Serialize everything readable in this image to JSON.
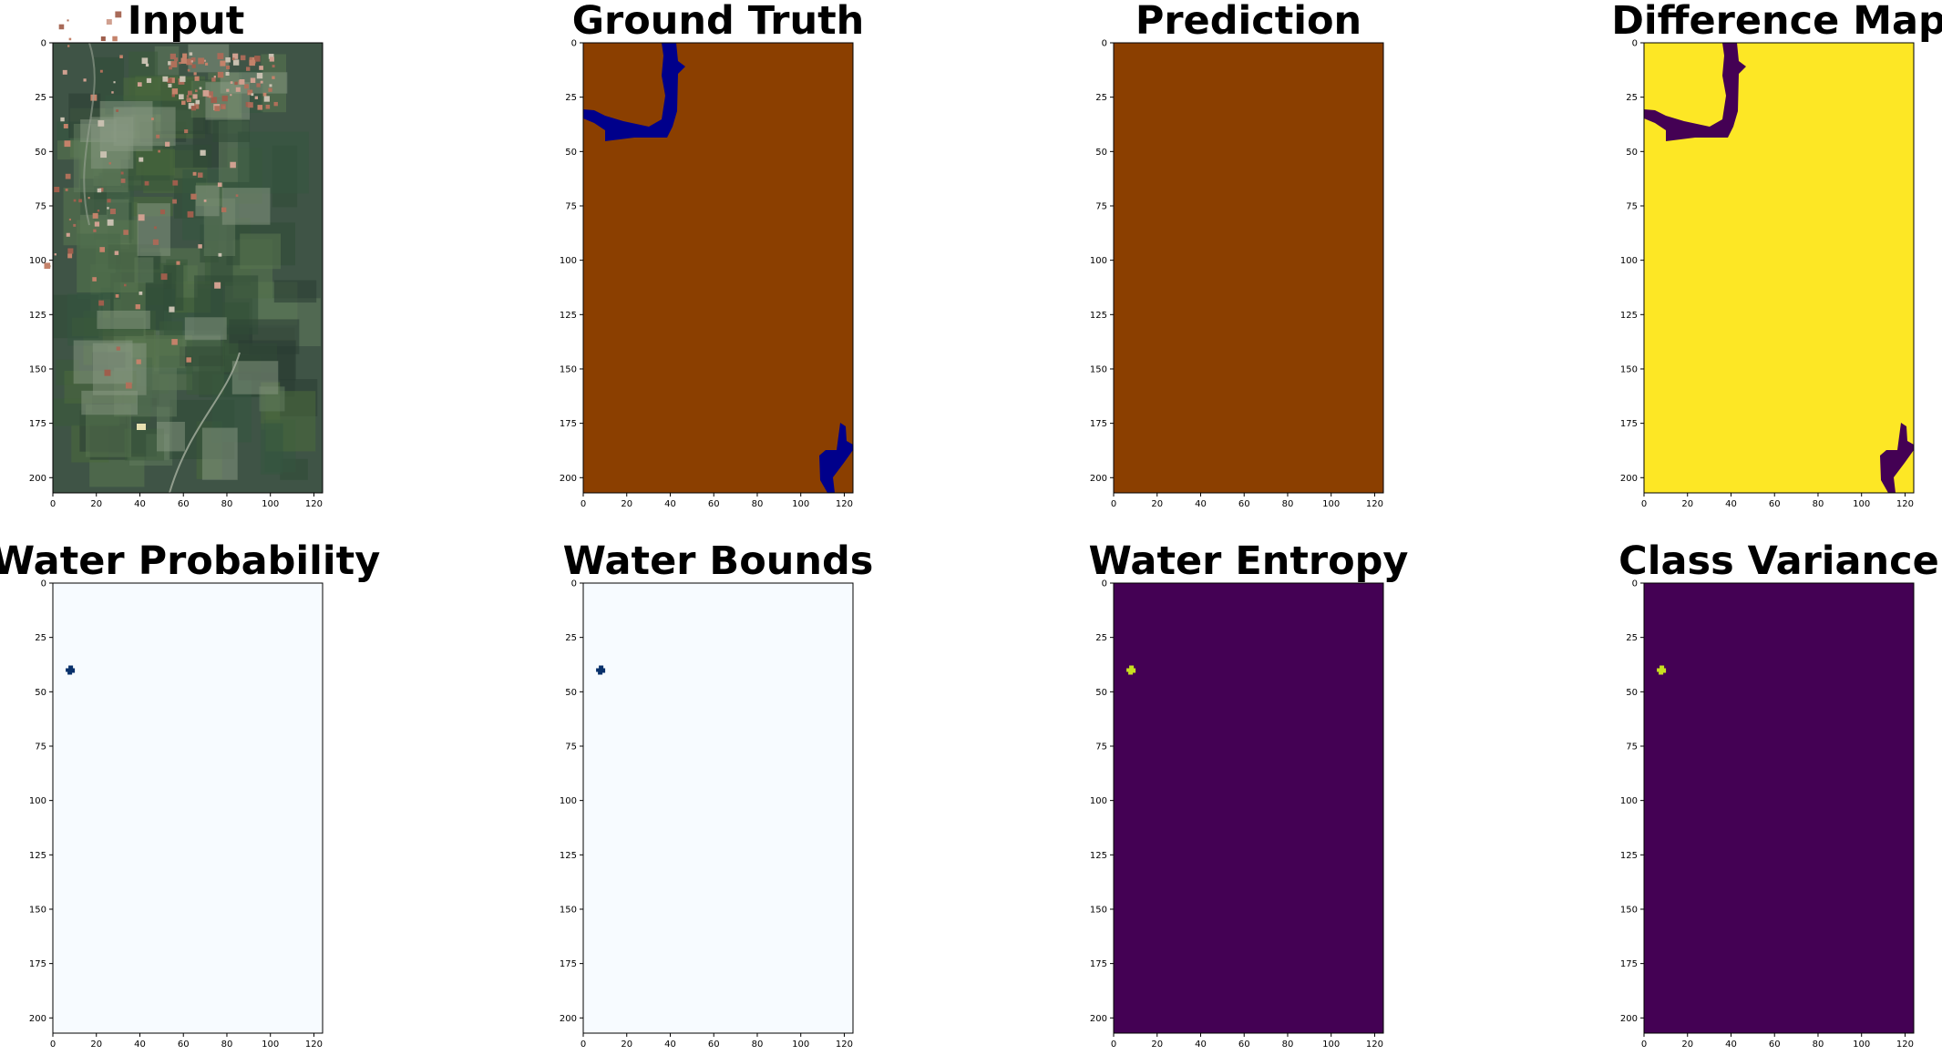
{
  "figure": {
    "panels": [
      {
        "title": "Input",
        "kind": "satellite"
      },
      {
        "title": "Ground Truth",
        "kind": "ground_truth",
        "background": "#8b3f00",
        "foreground": "#00008b"
      },
      {
        "title": "Prediction",
        "kind": "flat",
        "background": "#8b3f00"
      },
      {
        "title": "Difference Map",
        "kind": "ground_truth",
        "background": "#fde725",
        "foreground": "#440154"
      },
      {
        "title": "Water Probability",
        "kind": "dot",
        "background": "#f7fbff",
        "foreground": "#08306b"
      },
      {
        "title": "Water Bounds",
        "kind": "dot",
        "background": "#f7fbff",
        "foreground": "#08306b"
      },
      {
        "title": "Water Entropy",
        "kind": "dot",
        "background": "#440154",
        "foreground": "#c8e020"
      },
      {
        "title": "Class Variance",
        "kind": "dot",
        "background": "#440154",
        "foreground": "#c8e020"
      }
    ],
    "x_ticks": [
      "0",
      "20",
      "40",
      "60",
      "80",
      "100",
      "120"
    ],
    "y_ticks": [
      "0",
      "25",
      "50",
      "75",
      "100",
      "125",
      "150",
      "175",
      "200"
    ],
    "x_range": [
      0,
      124
    ],
    "y_range": [
      0,
      207
    ],
    "water_pixel": {
      "x": 8,
      "y": 40
    }
  }
}
